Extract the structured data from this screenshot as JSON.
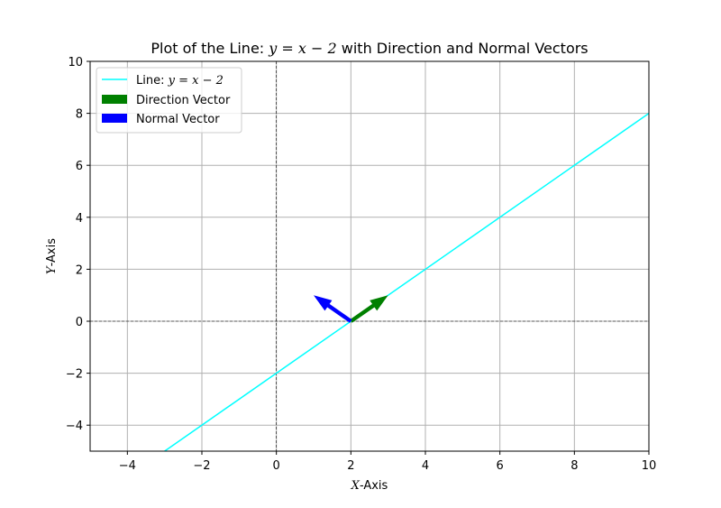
{
  "chart_data": {
    "type": "line",
    "title": "Plot of the Line: y = x − 2 with Direction and Normal Vectors",
    "title_parts": {
      "prefix": "Plot of the Line: ",
      "math": "y = x − 2",
      "suffix": " with Direction and Normal Vectors"
    },
    "xlabel": "X-Axis",
    "ylabel": "Y-Axis",
    "xlabel_parts": {
      "math": "X",
      "rest": "-Axis"
    },
    "ylabel_parts": {
      "math": "Y",
      "rest": "-Axis"
    },
    "xlim": [
      -5,
      10
    ],
    "ylim": [
      -5,
      10
    ],
    "xticks": [
      -4,
      -2,
      0,
      2,
      4,
      6,
      8,
      10
    ],
    "yticks": [
      -4,
      -2,
      0,
      2,
      4,
      6,
      8,
      10
    ],
    "xtick_labels": [
      "−4",
      "−2",
      "0",
      "2",
      "4",
      "6",
      "8",
      "10"
    ],
    "ytick_labels": [
      "−4",
      "−2",
      "0",
      "2",
      "4",
      "6",
      "8",
      "10"
    ],
    "grid": true,
    "legend_position": "upper-left",
    "series": [
      {
        "name": "Line: y = x − 2",
        "name_parts": {
          "prefix": "Line: ",
          "math": "y = x − 2"
        },
        "kind": "line",
        "color": "#00ffff",
        "x": [
          -5,
          10
        ],
        "y": [
          -7,
          8
        ]
      },
      {
        "name": "Direction Vector",
        "kind": "arrow",
        "color": "#008000",
        "origin": [
          2,
          0
        ],
        "vector": [
          1,
          1
        ]
      },
      {
        "name": "Normal Vector",
        "kind": "arrow",
        "color": "#0000ff",
        "origin": [
          2,
          0
        ],
        "vector": [
          -1,
          1
        ]
      }
    ],
    "reference_lines": {
      "x": 0,
      "y": 0,
      "style": "dashed",
      "color": "#000000"
    }
  }
}
